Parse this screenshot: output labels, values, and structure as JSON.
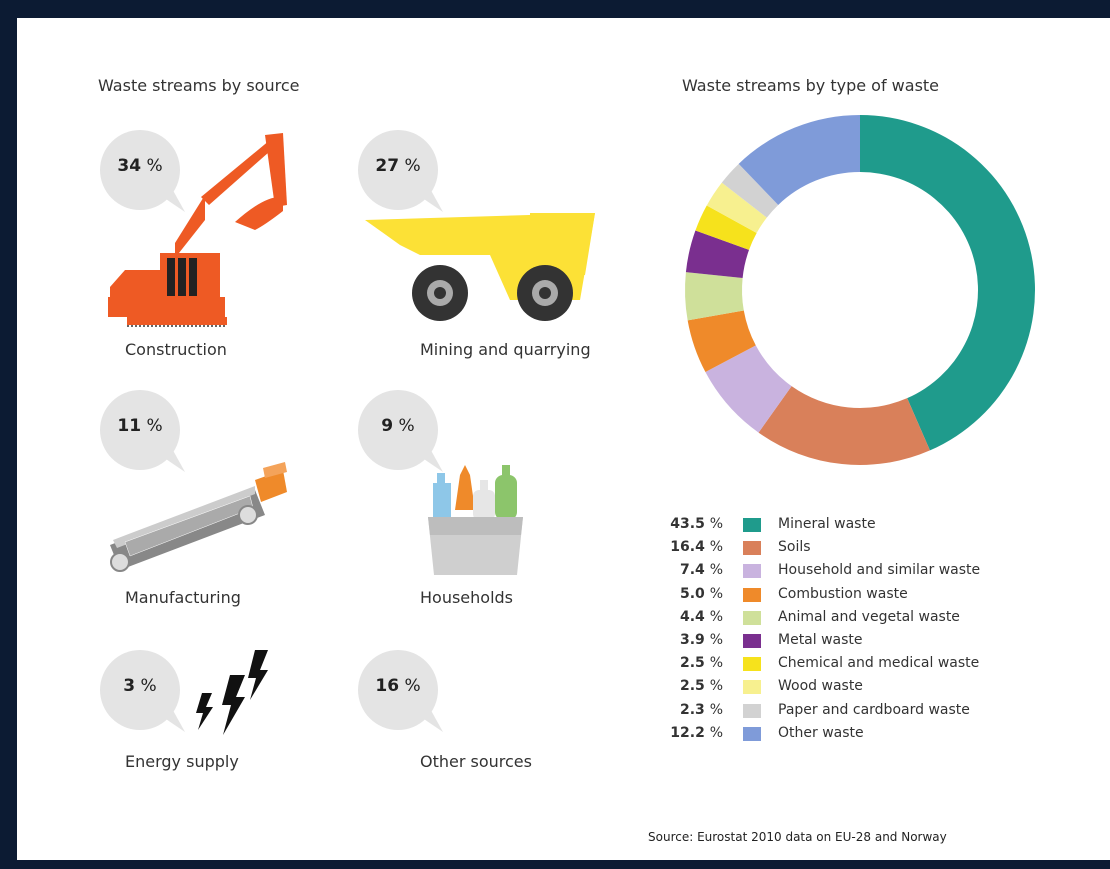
{
  "colors": {
    "frame": "#0c1b33",
    "panel": "#ffffff",
    "bubble": "#e4e4e4"
  },
  "left_title": "Waste streams by source",
  "right_title": "Waste streams by type of waste",
  "sources": [
    {
      "pct": "34",
      "unit": "%",
      "label": "Construction",
      "icon": "excavator-icon"
    },
    {
      "pct": "27",
      "unit": "%",
      "label": "Mining and quarrying",
      "icon": "dump-truck-icon"
    },
    {
      "pct": "11",
      "unit": "%",
      "label": "Manufacturing",
      "icon": "conveyor-belt-icon"
    },
    {
      "pct": "9",
      "unit": "%",
      "label": "Households",
      "icon": "household-bottles-icon"
    },
    {
      "pct": "3",
      "unit": "%",
      "label": "Energy supply",
      "icon": "lightning-icon"
    },
    {
      "pct": "16",
      "unit": "%",
      "label": "Other sources",
      "icon": ""
    }
  ],
  "chart_data": {
    "type": "pie",
    "title": "Waste streams by type of waste",
    "donut": true,
    "start": "12 o'clock, clockwise",
    "slices": [
      {
        "label": "Mineral waste",
        "value": 43.5,
        "value_text": "43.5",
        "color": "#1f9b8c"
      },
      {
        "label": "Soils",
        "value": 16.4,
        "value_text": "16.4",
        "color": "#d9805a"
      },
      {
        "label": "Household and similar waste",
        "value": 7.4,
        "value_text": "7.4",
        "color": "#c9b3df"
      },
      {
        "label": "Combustion waste",
        "value": 5.0,
        "value_text": "5.0",
        "color": "#ef8a2a"
      },
      {
        "label": "Animal and vegetal waste",
        "value": 4.4,
        "value_text": "4.4",
        "color": "#cfe09a"
      },
      {
        "label": "Metal waste",
        "value": 3.9,
        "value_text": "3.9",
        "color": "#7a2f8f"
      },
      {
        "label": "Chemical and medical waste",
        "value": 2.5,
        "value_text": "2.5",
        "color": "#f6e21c"
      },
      {
        "label": "Wood waste",
        "value": 2.5,
        "value_text": "2.5",
        "color": "#f7f08f"
      },
      {
        "label": "Paper and cardboard waste",
        "value": 2.3,
        "value_text": "2.3",
        "color": "#d2d2d2"
      },
      {
        "label": "Other waste",
        "value": 12.2,
        "value_text": "12.2",
        "color": "#7f9bd9"
      }
    ],
    "unit": "%"
  },
  "source_note": "Source: Eurostat 2010 data on EU-28 and Norway"
}
